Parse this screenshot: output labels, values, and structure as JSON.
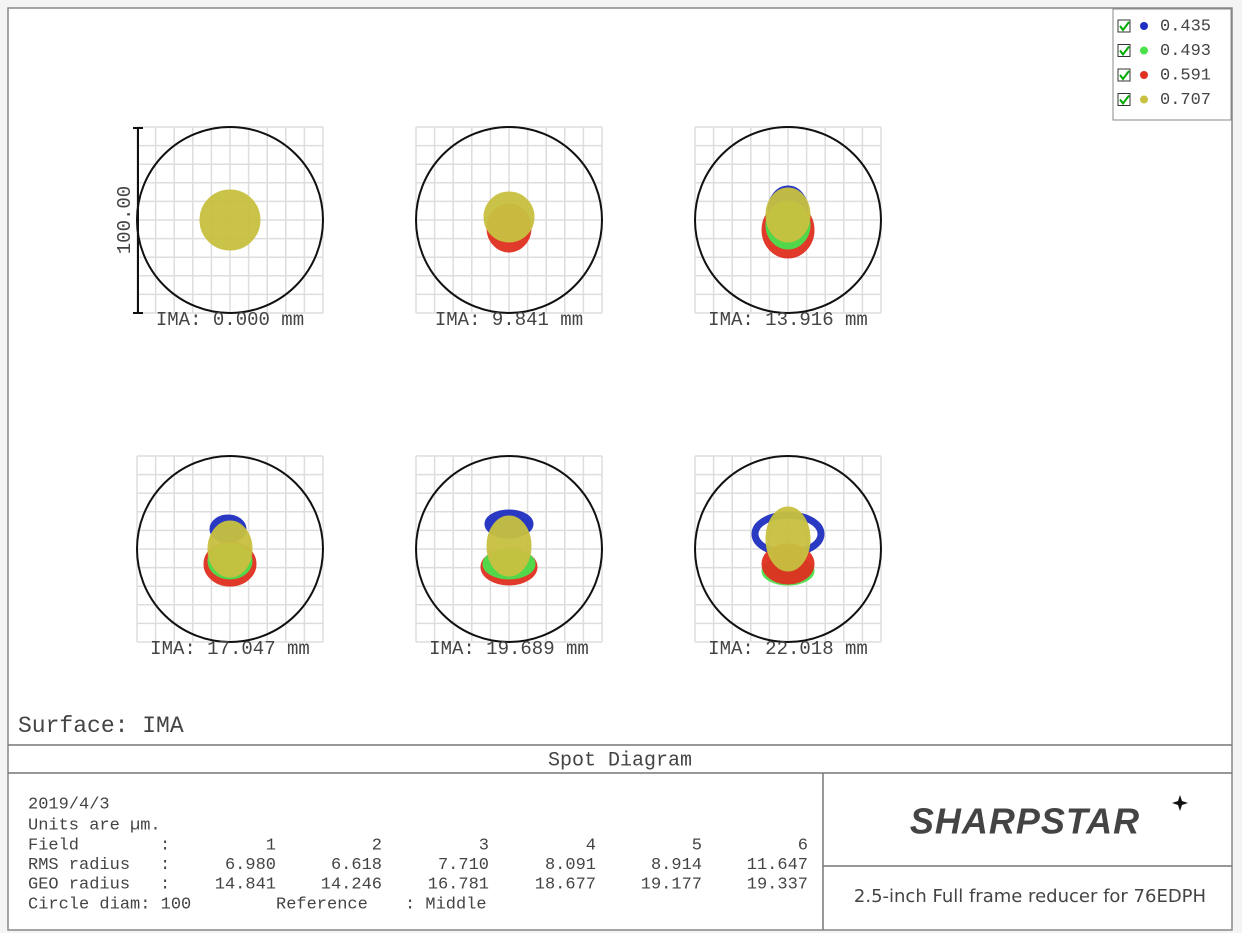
{
  "window": {
    "legend": [
      "0.435",
      "0.493",
      "0.591",
      "0.707"
    ],
    "scale_label": "100.00",
    "fields": [
      "IMA: 0.000 mm",
      "IMA: 9.841 mm",
      "IMA: 13.916 mm",
      "IMA: 17.047 mm",
      "IMA: 19.689 mm",
      "IMA: 22.018 mm"
    ],
    "surface": "Surface: IMA",
    "title": "Spot Diagram",
    "info": {
      "date": "2019/4/3",
      "units": "Units are µm.",
      "rows": [
        [
          "Field",
          ":",
          "1",
          "2",
          "3",
          "4",
          "5",
          "6"
        ],
        [
          "RMS radius",
          ":",
          "6.980",
          "6.618",
          "7.710",
          "8.091",
          "8.914",
          "11.647"
        ],
        [
          "GEO radius",
          ":",
          "14.841",
          "14.246",
          "16.781",
          "18.677",
          "19.177",
          "19.337"
        ]
      ],
      "circle": "Circle diam: 100",
      "reference": "Reference",
      "reference_value": ": Middle"
    },
    "logo": "SHARPSTAR",
    "description": "2.5-inch Full frame reducer for 76EDPH"
  }
}
